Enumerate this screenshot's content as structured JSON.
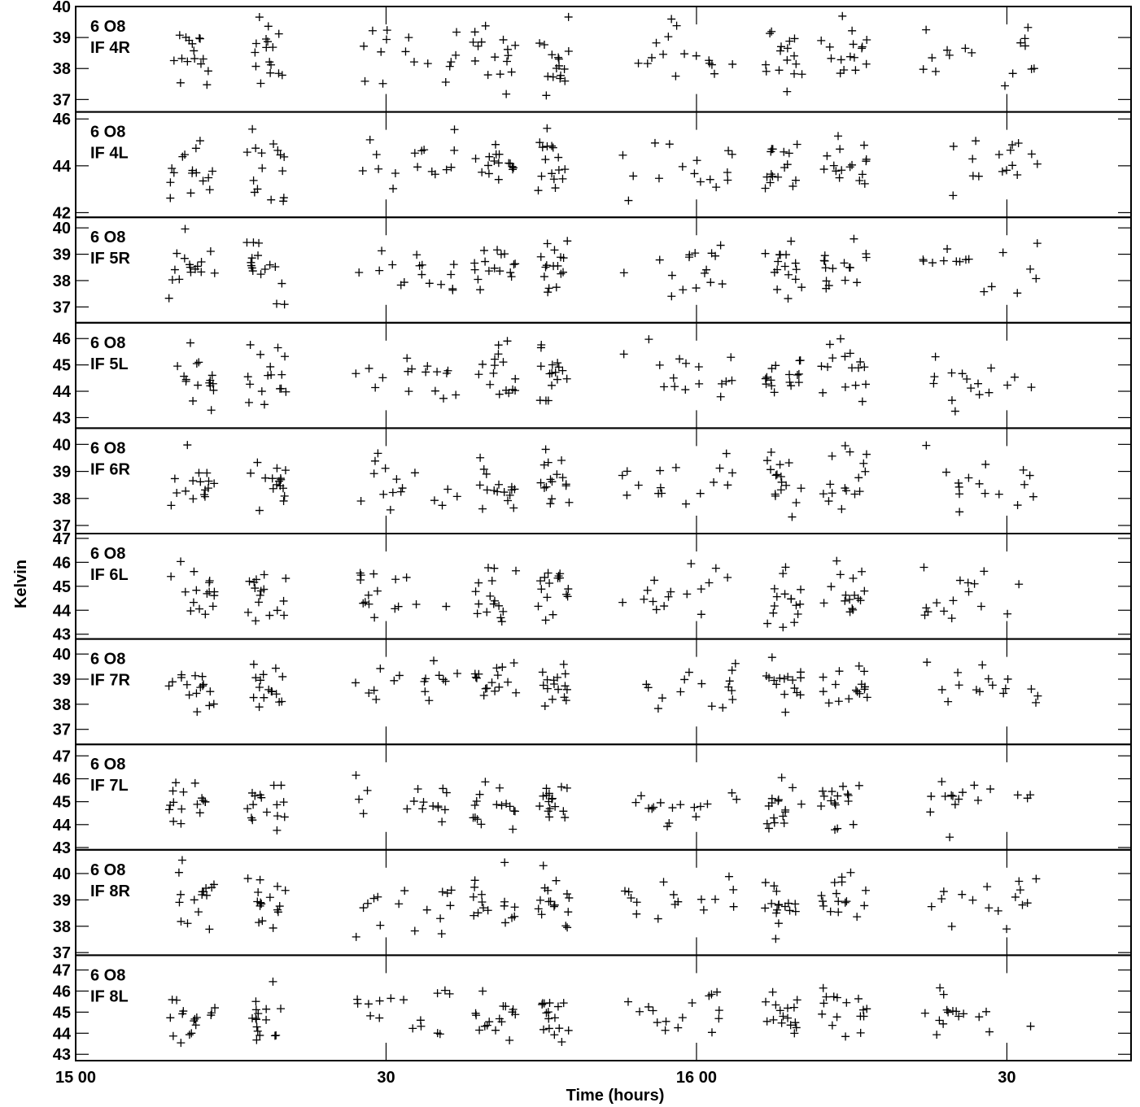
{
  "chart_data": {
    "type": "scatter",
    "title": "",
    "xlabel": "Time (hours)",
    "ylabel": "Kelvin",
    "x_ticks": [
      "15 00",
      "30",
      "16 00",
      "30"
    ],
    "panels": [
      {
        "line1": "6 O8",
        "line2": "IF 4R",
        "ylim": [
          36.6,
          40.0
        ],
        "yticks": [
          37,
          38,
          39,
          40
        ],
        "center": 38.4,
        "spread": 0.55
      },
      {
        "line1": "6 O8",
        "line2": "IF 4L",
        "ylim": [
          41.8,
          46.3
        ],
        "yticks": [
          42,
          44,
          46
        ],
        "center": 44.1,
        "spread": 0.7
      },
      {
        "line1": "6 O8",
        "line2": "IF 5R",
        "ylim": [
          36.4,
          40.4
        ],
        "yticks": [
          37,
          38,
          39,
          40
        ],
        "center": 38.5,
        "spread": 0.55
      },
      {
        "line1": "6 O8",
        "line2": "IF 5L",
        "ylim": [
          42.6,
          46.6
        ],
        "yticks": [
          43,
          44,
          45,
          46
        ],
        "center": 44.5,
        "spread": 0.6
      },
      {
        "line1": "6 O8",
        "line2": "IF 6R",
        "ylim": [
          36.7,
          40.6
        ],
        "yticks": [
          37,
          38,
          39,
          40
        ],
        "center": 38.6,
        "spread": 0.55
      },
      {
        "line1": "6 O8",
        "line2": "IF 6L",
        "ylim": [
          42.8,
          47.2
        ],
        "yticks": [
          43,
          44,
          45,
          46,
          47
        ],
        "center": 44.7,
        "spread": 0.6
      },
      {
        "line1": "6 O8",
        "line2": "IF 7R",
        "ylim": [
          36.4,
          40.6
        ],
        "yticks": [
          37,
          38,
          39,
          40
        ],
        "center": 38.8,
        "spread": 0.55
      },
      {
        "line1": "6 O8",
        "line2": "IF 7L",
        "ylim": [
          42.9,
          47.5
        ],
        "yticks": [
          43,
          44,
          45,
          46,
          47
        ],
        "center": 44.9,
        "spread": 0.55
      },
      {
        "line1": "6 O8",
        "line2": "IF 8R",
        "ylim": [
          36.9,
          40.9
        ],
        "yticks": [
          37,
          38,
          39,
          40
        ],
        "center": 38.9,
        "spread": 0.55
      },
      {
        "line1": "6 O8",
        "line2": "IF 8L",
        "ylim": [
          42.7,
          47.7
        ],
        "yticks": [
          43,
          44,
          45,
          46,
          47
        ],
        "center": 45.0,
        "spread": 0.6
      }
    ],
    "scan_windows": [
      [
        0.3,
        0.45
      ],
      [
        0.55,
        0.68
      ],
      [
        0.9,
        1.23
      ],
      [
        1.28,
        1.42
      ],
      [
        1.49,
        1.59
      ],
      [
        1.76,
        2.13
      ],
      [
        2.22,
        2.34
      ],
      [
        2.4,
        2.55
      ],
      [
        2.73,
        3.1
      ]
    ],
    "x_range": [
      0,
      3.4
    ],
    "x_tick_positions": [
      0,
      1,
      2,
      3
    ],
    "points_per_scan": 16,
    "marker": "+",
    "color": "#000000"
  }
}
